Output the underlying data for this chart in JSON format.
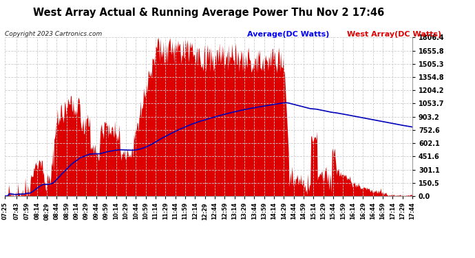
{
  "title": "West Array Actual & Running Average Power Thu Nov 2 17:46",
  "copyright": "Copyright 2023 Cartronics.com",
  "legend_avg": "Average(DC Watts)",
  "legend_west": "West Array(DC Watts)",
  "y_ticks": [
    0.0,
    150.5,
    301.1,
    451.6,
    602.1,
    752.6,
    903.2,
    1053.7,
    1204.2,
    1354.8,
    1505.3,
    1655.8,
    1806.4
  ],
  "ymax": 1806.4,
  "bg_color": "#ffffff",
  "plot_bg_color": "#ffffff",
  "grid_color": "#cccccc",
  "bar_color": "#dd0000",
  "avg_color": "#0000bb",
  "title_color": "#000000",
  "copyright_color": "#000000",
  "legend_avg_color": "#0000ee",
  "legend_west_color": "#dd0000",
  "x_tick_labels": [
    "07:25",
    "07:43",
    "07:59",
    "08:14",
    "08:29",
    "08:44",
    "08:59",
    "09:14",
    "09:29",
    "09:44",
    "09:59",
    "10:14",
    "10:29",
    "10:44",
    "10:59",
    "11:14",
    "11:29",
    "11:44",
    "11:59",
    "12:14",
    "12:29",
    "12:44",
    "12:59",
    "13:14",
    "13:29",
    "13:44",
    "13:59",
    "14:14",
    "14:29",
    "14:44",
    "14:59",
    "15:14",
    "15:29",
    "15:44",
    "15:59",
    "16:14",
    "16:29",
    "16:44",
    "16:59",
    "17:14",
    "17:29",
    "17:44"
  ]
}
